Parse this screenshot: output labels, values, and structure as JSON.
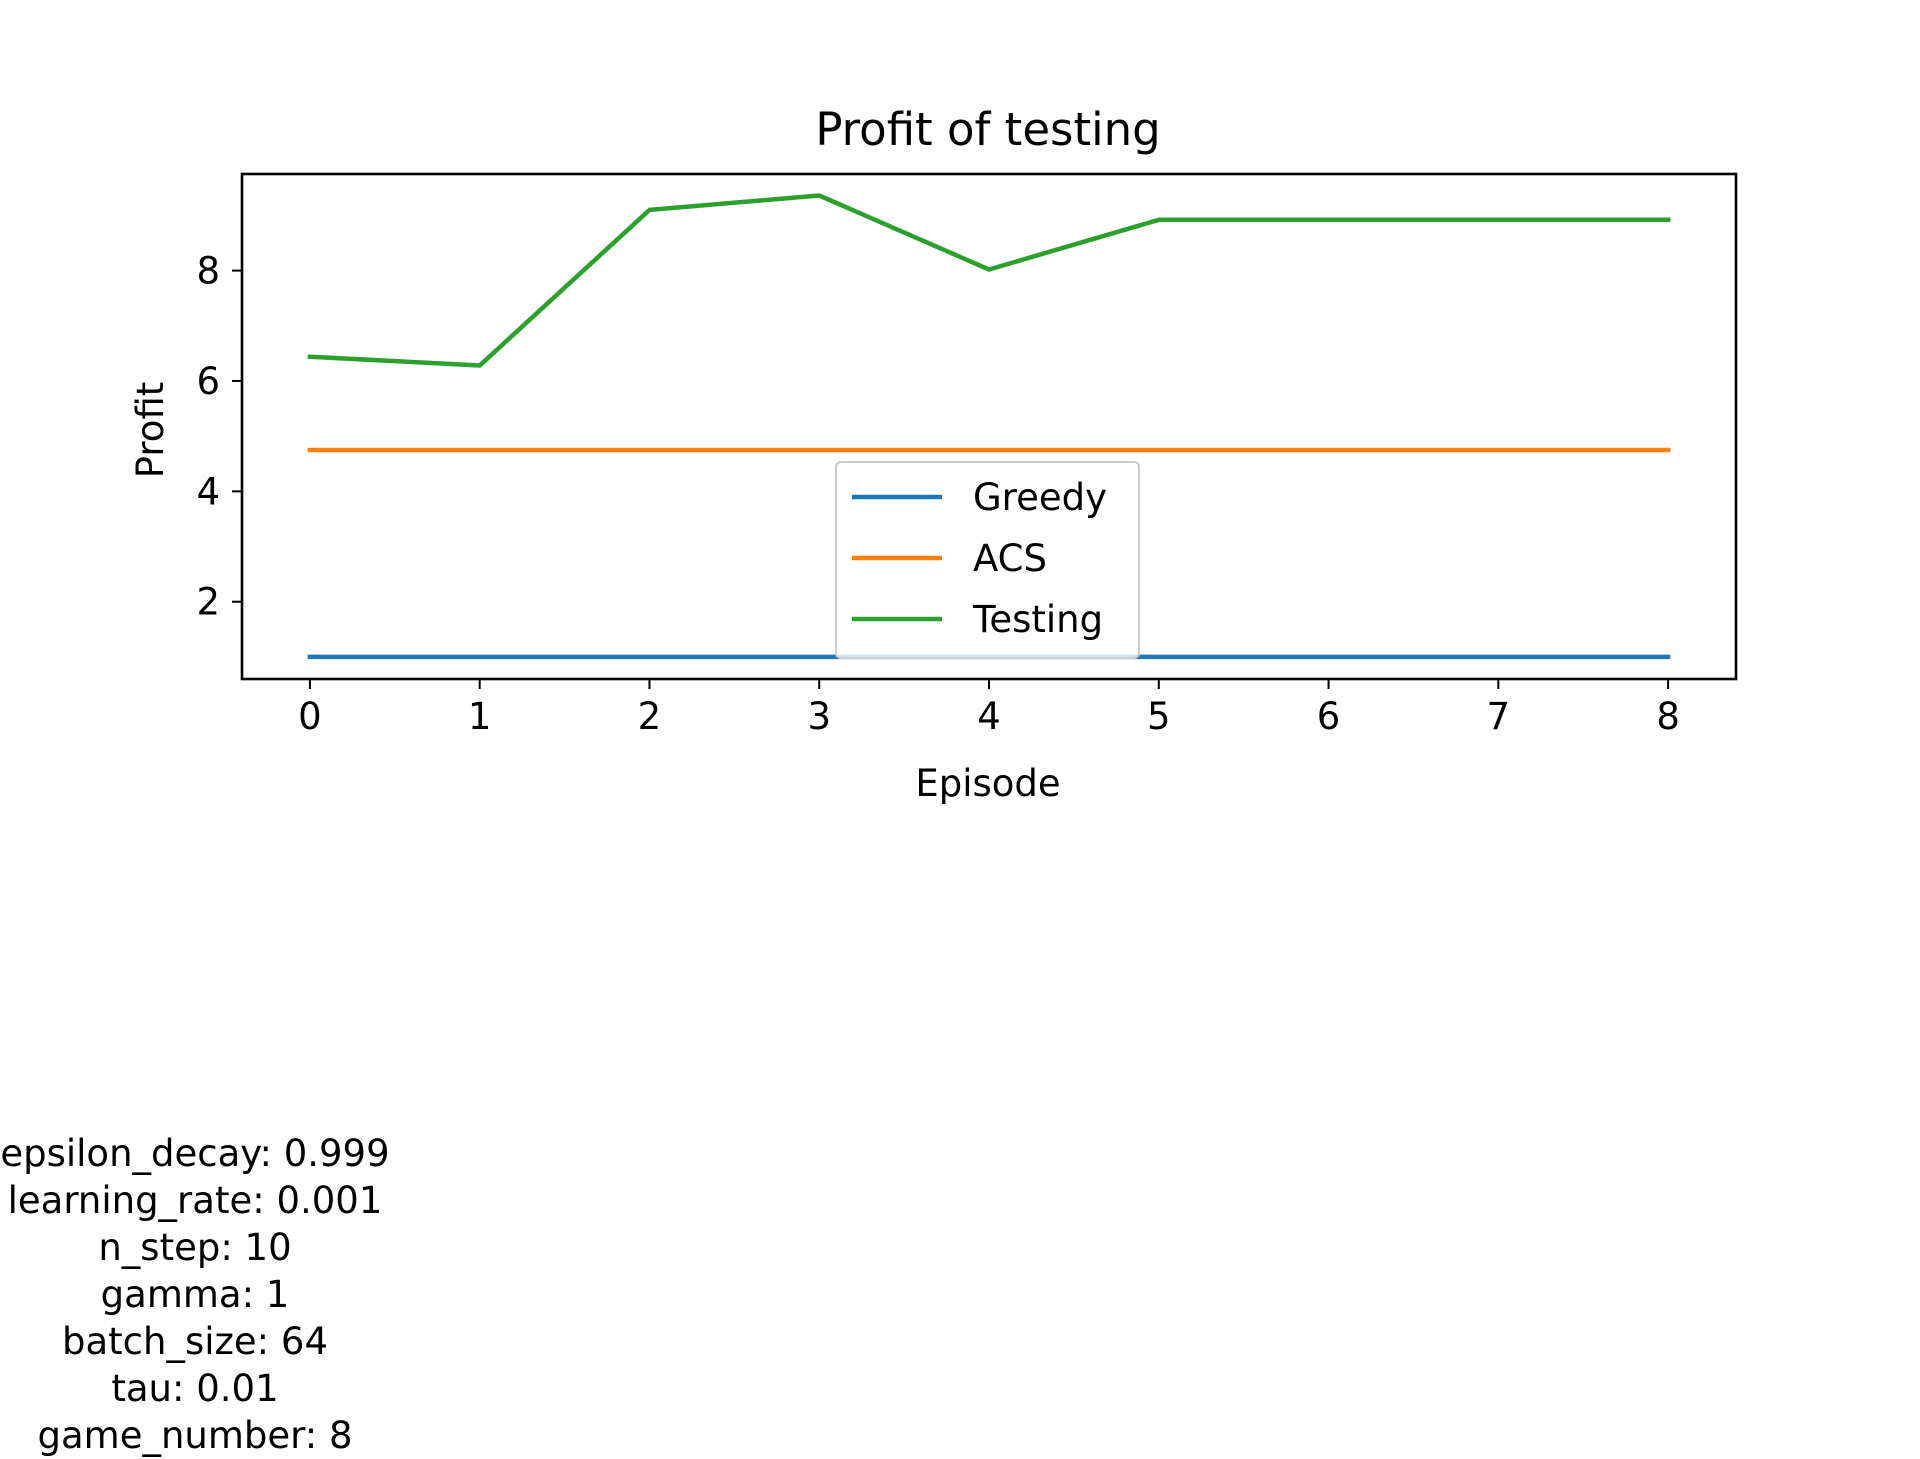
{
  "chart_data": {
    "type": "line",
    "title": "Profit of testing",
    "xlabel": "Episode",
    "ylabel": "Profit",
    "x": [
      0,
      1,
      2,
      3,
      4,
      5,
      6,
      7,
      8
    ],
    "xlim": [
      -0.4,
      8.4
    ],
    "ylim": [
      0.6,
      9.75
    ],
    "xticks": [
      "0",
      "1",
      "2",
      "3",
      "4",
      "5",
      "6",
      "7",
      "8"
    ],
    "yticks": [
      "2",
      "4",
      "6",
      "8"
    ],
    "grid": false,
    "legend_position": "lower center",
    "series": [
      {
        "name": "Greedy",
        "color": "#1f77b4",
        "values": [
          1.0,
          1.0,
          1.0,
          1.0,
          1.0,
          1.0,
          1.0,
          1.0,
          1.0
        ]
      },
      {
        "name": "ACS",
        "color": "#ff7f0e",
        "values": [
          4.75,
          4.75,
          4.75,
          4.75,
          4.75,
          4.75,
          4.75,
          4.75,
          4.75
        ]
      },
      {
        "name": "Testing",
        "color": "#2ca02c",
        "values": [
          6.44,
          6.28,
          9.1,
          9.36,
          8.02,
          8.92,
          8.92,
          8.92,
          8.92
        ]
      }
    ]
  },
  "parameters": [
    "epsilon_decay: 0.999",
    "learning_rate: 0.001",
    "n_step: 10",
    "gamma: 1",
    "batch_size: 64",
    "tau: 0.01",
    "game_number: 8"
  ]
}
